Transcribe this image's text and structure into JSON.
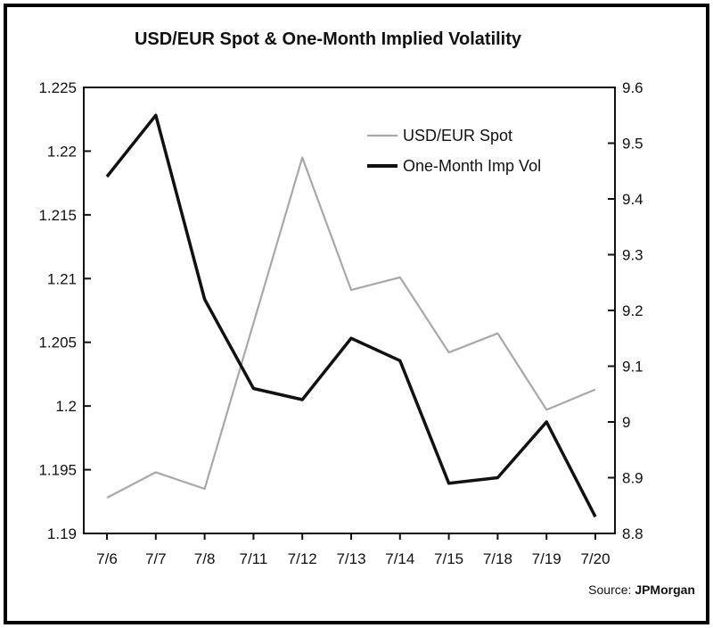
{
  "chart_data": {
    "type": "line",
    "title": "USD/EUR Spot & One-Month Implied Volatility",
    "categories": [
      "7/6",
      "7/7",
      "7/8",
      "7/11",
      "7/12",
      "7/13",
      "7/14",
      "7/15",
      "7/18",
      "7/19",
      "7/20"
    ],
    "left_axis": {
      "min": 1.19,
      "max": 1.225,
      "ticks": [
        "1.19",
        "1.195",
        "1.2",
        "1.205",
        "1.21",
        "1.215",
        "1.22",
        "1.225"
      ]
    },
    "right_axis": {
      "min": 8.8,
      "max": 9.6,
      "ticks": [
        "8.8",
        "8.9",
        "9",
        "9.1",
        "9.2",
        "9.3",
        "9.4",
        "9.5",
        "9.6"
      ]
    },
    "series": [
      {
        "name": "USD/EUR Spot",
        "axis": "left",
        "color": "#a8a8a8",
        "values": [
          1.1928,
          1.1948,
          1.1935,
          1.2065,
          1.2195,
          1.2091,
          1.2101,
          1.2042,
          1.2057,
          1.1997,
          1.2013
        ]
      },
      {
        "name": "One-Month Imp Vol",
        "axis": "right",
        "color": "#111111",
        "values": [
          9.44,
          9.55,
          9.22,
          9.06,
          9.04,
          9.15,
          9.11,
          8.89,
          8.9,
          9.0,
          8.83
        ]
      }
    ],
    "legend_position": "top-right",
    "grid": false
  },
  "source": {
    "prefix": "Source: ",
    "name": "JPMorgan"
  }
}
